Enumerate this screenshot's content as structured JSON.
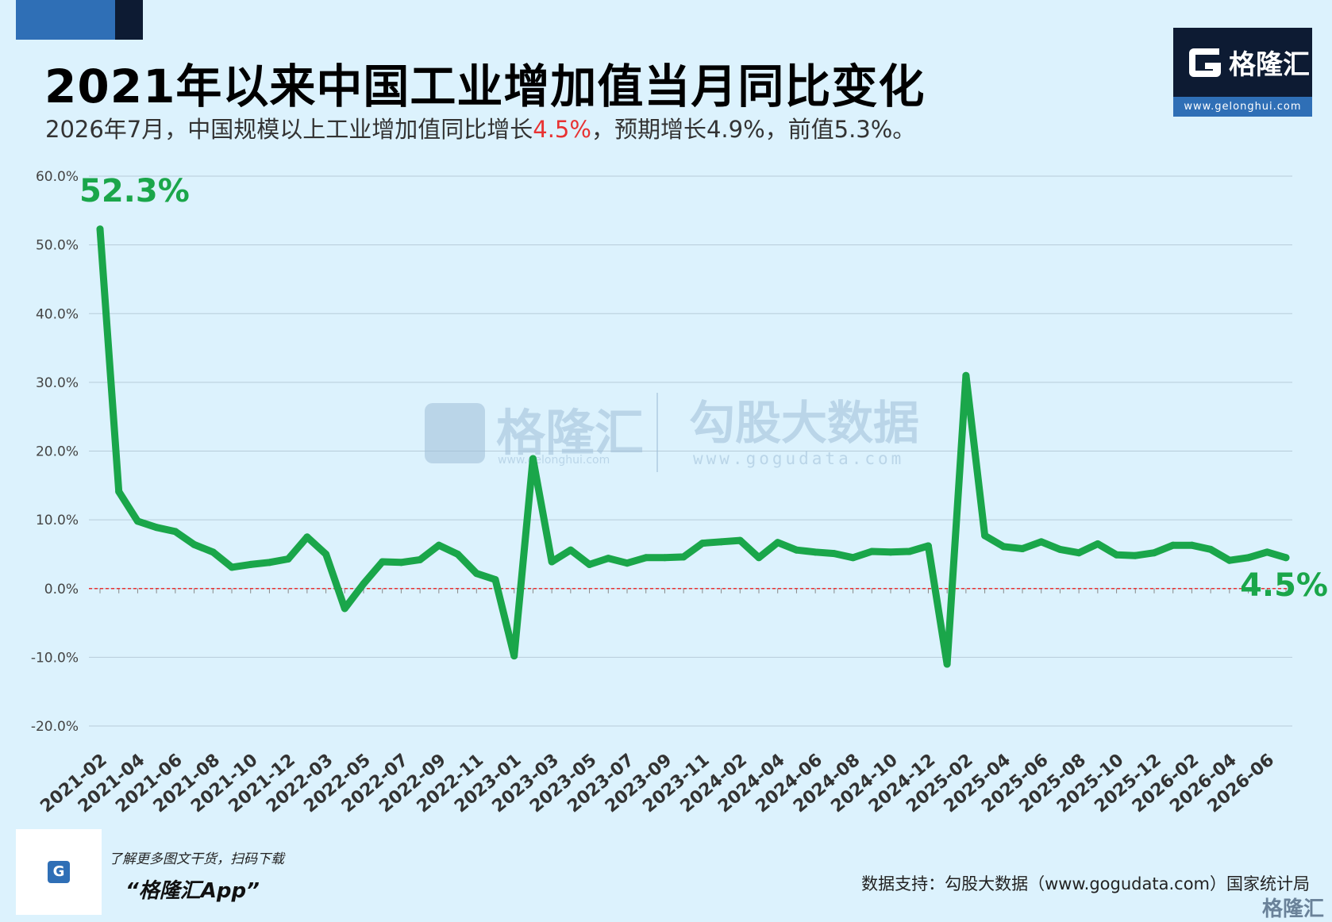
{
  "header": {
    "title": "2021年以来中国工业增加值当月同比变化",
    "subtitle_pre": "2026年7月，中国规模以上工业增加值同比增长",
    "subtitle_highlight": "4.5%",
    "subtitle_post": "，预期增长4.9%，前值5.3%。"
  },
  "logo": {
    "name": "格隆汇",
    "url": "www.gelonghui.com"
  },
  "watermark": {
    "brand1": "格隆汇",
    "url1": "www.gelonghui.com",
    "brand2": "勾股大数据",
    "url2": "www.gogudata.com"
  },
  "colors": {
    "background": "#dcf2fd",
    "line": "#1aa64a",
    "highlight": "#e83232",
    "zero_line": "#e83232",
    "navy": "#0d1b33",
    "blue": "#2f6fb6"
  },
  "chart_data": {
    "type": "line",
    "series": [
      {
        "values": [
          52.3,
          14.1,
          9.8,
          8.9,
          8.3,
          6.4,
          5.3,
          3.1,
          3.5,
          3.8,
          4.3,
          7.5,
          5.0,
          -2.9,
          0.7,
          3.9,
          3.8,
          4.2,
          6.3,
          5.0,
          2.2,
          1.3,
          -9.8,
          18.9,
          3.9,
          5.6,
          3.5,
          4.4,
          3.7,
          4.5,
          4.5,
          4.6,
          6.6,
          6.8,
          7.0,
          4.5,
          6.7,
          5.6,
          5.3,
          5.1,
          4.5,
          5.4,
          5.3,
          5.4,
          6.2,
          -11.0,
          31.0,
          7.7,
          6.1,
          5.8,
          6.8,
          5.7,
          5.2,
          6.5,
          4.9,
          4.8,
          5.2,
          6.3,
          6.3,
          5.7,
          4.1,
          4.5,
          5.3,
          4.5
        ]
      }
    ],
    "x_tick_labels": [
      "2021-02",
      "2021-04",
      "2021-06",
      "2021-08",
      "2021-10",
      "2021-12",
      "2022-03",
      "2022-05",
      "2022-07",
      "2022-09",
      "2022-11",
      "2023-01",
      "2023-03",
      "2023-05",
      "2023-07",
      "2023-09",
      "2023-11",
      "2024-02",
      "2024-04",
      "2024-06",
      "2024-08",
      "2024-10",
      "2024-12",
      "2025-02",
      "2025-04",
      "2025-06",
      "2025-08",
      "2025-10",
      "2025-12",
      "2026-02",
      "2026-04",
      "2026-06"
    ],
    "y_ticks": [
      "-20.0%",
      "-10.0%",
      "0.0%",
      "10.0%",
      "20.0%",
      "30.0%",
      "40.0%",
      "50.0%",
      "60.0%"
    ],
    "ylim": [
      -20,
      60
    ],
    "grid": true,
    "annotations": [
      {
        "text": "52.3%",
        "value": 52.3
      },
      {
        "text": "4.5%",
        "value": 4.5
      }
    ]
  },
  "footer": {
    "promo_line": "了解更多图文干货，扫码下载",
    "promo_app": "“格隆汇App”",
    "source": "数据支持：勾股大数据（www.gogudata.com）国家统计局",
    "corner_brand": "格隆汇"
  }
}
